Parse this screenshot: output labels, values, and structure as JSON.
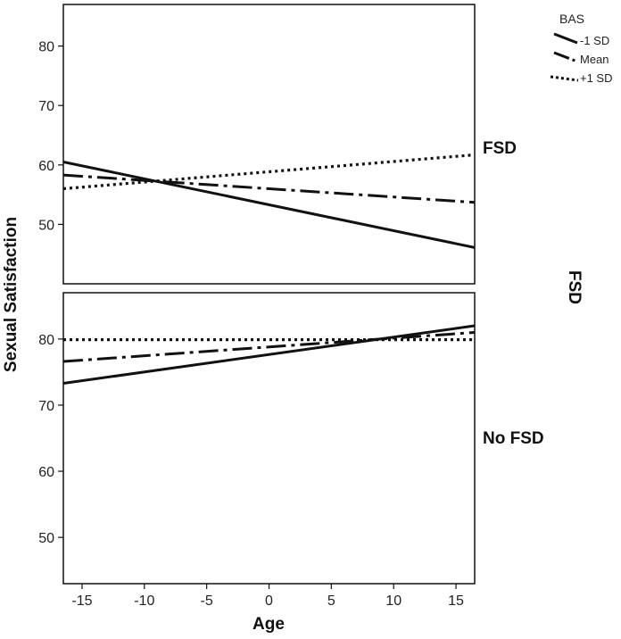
{
  "chart_data": {
    "type": "line",
    "xlabel": "Age",
    "ylabel": "Sexual Satisfaction",
    "facet_label": "FSD",
    "xlim": [
      -16.5,
      16.5
    ],
    "xticks": [
      -15,
      -10,
      -5,
      0,
      5,
      10,
      15
    ],
    "legend": {
      "title": "BAS",
      "placement": "top-right",
      "entries": [
        {
          "label": "-1 SD",
          "dash": "solid"
        },
        {
          "label": "Mean",
          "dash": "dashdot"
        },
        {
          "label": "+1 SD",
          "dash": "dotted"
        }
      ]
    },
    "panels": [
      {
        "label": "FSD",
        "ylim": [
          40,
          87
        ],
        "yticks": [
          50,
          60,
          70,
          80
        ],
        "series": [
          {
            "name": "-1 SD",
            "dash": "solid",
            "x": [
              -16.5,
              16.5
            ],
            "y": [
              60.5,
              46.1
            ]
          },
          {
            "name": "Mean",
            "dash": "dashdot",
            "x": [
              -16.5,
              16.5
            ],
            "y": [
              58.3,
              53.7
            ]
          },
          {
            "name": "+1 SD",
            "dash": "dotted",
            "x": [
              -16.5,
              16.5
            ],
            "y": [
              56.0,
              61.7
            ]
          }
        ]
      },
      {
        "label": "No FSD",
        "ylim": [
          43,
          87
        ],
        "yticks": [
          50,
          60,
          70,
          80
        ],
        "series": [
          {
            "name": "-1 SD",
            "dash": "solid",
            "x": [
              -16.5,
              16.5
            ],
            "y": [
              73.3,
              82.0
            ]
          },
          {
            "name": "Mean",
            "dash": "dashdot",
            "x": [
              -16.5,
              16.5
            ],
            "y": [
              76.6,
              81.0
            ]
          },
          {
            "name": "+1 SD",
            "dash": "dotted",
            "x": [
              -16.5,
              16.5
            ],
            "y": [
              79.9,
              79.9
            ]
          }
        ]
      }
    ],
    "grid": false
  }
}
